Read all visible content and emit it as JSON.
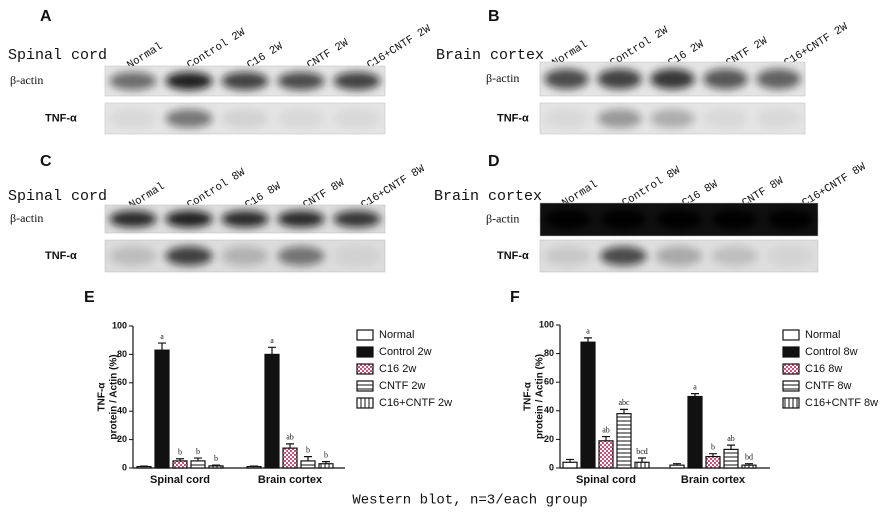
{
  "blots": [
    {
      "letter": "A",
      "tissue": "Spinal cord",
      "lanes": [
        "Normal",
        "Control 2W",
        "C16 2W",
        "CNTF 2W",
        "C16+CNTF 2W"
      ],
      "rows": [
        "β-actin",
        "TNF-α"
      ]
    },
    {
      "letter": "B",
      "tissue": "Brain cortex",
      "lanes": [
        "Normal",
        "Control 2W",
        "C16 2W",
        "CNTF 2W",
        "C16+CNTF 2W"
      ],
      "rows": [
        "β-actin",
        "TNF-α"
      ]
    },
    {
      "letter": "C",
      "tissue": "Spinal cord",
      "lanes": [
        "Normal",
        "Control 8W",
        "C16 8W",
        "CNTF 8W",
        "C16+CNTF 8W"
      ],
      "rows": [
        "β-actin",
        "TNF-α"
      ]
    },
    {
      "letter": "D",
      "tissue": "Brain cortex",
      "lanes": [
        "Normal",
        "Control 8W",
        "C16 8W",
        "CNTF 8W",
        "C16+CNTF 8W"
      ],
      "rows": [
        "β-actin",
        "TNF-α"
      ]
    }
  ],
  "chart_data": [
    {
      "type": "bar",
      "letter": "E",
      "y_label": [
        "TNF-α",
        "protein / Actin (%)"
      ],
      "categories": [
        "Spinal cord",
        "Brain cortex"
      ],
      "ylim": [
        0,
        100
      ],
      "yticks": [
        0,
        20,
        40,
        60,
        80,
        100
      ],
      "series": [
        {
          "name": "Normal",
          "color": "#ffffff",
          "pattern": "solid",
          "values": [
            1,
            1
          ],
          "errors": [
            0.3,
            0.3
          ],
          "sig_labels": [
            null,
            null
          ]
        },
        {
          "name": "Control 2w",
          "color": "#111111",
          "pattern": "solid",
          "values": [
            83,
            80
          ],
          "errors": [
            5,
            5
          ],
          "sig_labels": [
            "a",
            "a"
          ]
        },
        {
          "name": "C16 2w",
          "color": "#c8507a",
          "pattern": "checker",
          "values": [
            5,
            14
          ],
          "errors": [
            1.5,
            3
          ],
          "sig_labels": [
            "b",
            "ab"
          ]
        },
        {
          "name": "CNTF 2w",
          "color": "#ffffff",
          "pattern": "hlines",
          "values": [
            5,
            5
          ],
          "errors": [
            2,
            3
          ],
          "sig_labels": [
            "b",
            "b"
          ]
        },
        {
          "name": "C16+CNTF 2w",
          "color": "#ffffff",
          "pattern": "vlines",
          "values": [
            1.5,
            3
          ],
          "errors": [
            0.5,
            1.5
          ],
          "sig_labels": [
            "b",
            "b"
          ]
        }
      ]
    },
    {
      "type": "bar",
      "letter": "F",
      "y_label": [
        "TNF-α",
        "protein / Actin (%)"
      ],
      "categories": [
        "Spinal cord",
        "Brain cortex"
      ],
      "ylim": [
        0,
        100
      ],
      "yticks": [
        0,
        20,
        40,
        60,
        80,
        100
      ],
      "series": [
        {
          "name": "Normal",
          "color": "#ffffff",
          "pattern": "solid",
          "values": [
            4,
            2
          ],
          "errors": [
            2,
            1
          ],
          "sig_labels": [
            null,
            null
          ]
        },
        {
          "name": "Control 8w",
          "color": "#111111",
          "pattern": "solid",
          "values": [
            88,
            50
          ],
          "errors": [
            3,
            2
          ],
          "sig_labels": [
            "a",
            "a"
          ]
        },
        {
          "name": "C16 8w",
          "color": "#c8507a",
          "pattern": "checker",
          "values": [
            19,
            8
          ],
          "errors": [
            3,
            2
          ],
          "sig_labels": [
            "ab",
            "b"
          ]
        },
        {
          "name": "CNTF 8w",
          "color": "#ffffff",
          "pattern": "hlines",
          "values": [
            38,
            13
          ],
          "errors": [
            3,
            3
          ],
          "sig_labels": [
            "abc",
            "ab"
          ]
        },
        {
          "name": "C16+CNTF 8w",
          "color": "#ffffff",
          "pattern": "vlines",
          "values": [
            4,
            2
          ],
          "errors": [
            3,
            1
          ],
          "sig_labels": [
            "bcd",
            "bd"
          ]
        }
      ]
    }
  ],
  "caption": "Western blot, n=3/each group"
}
